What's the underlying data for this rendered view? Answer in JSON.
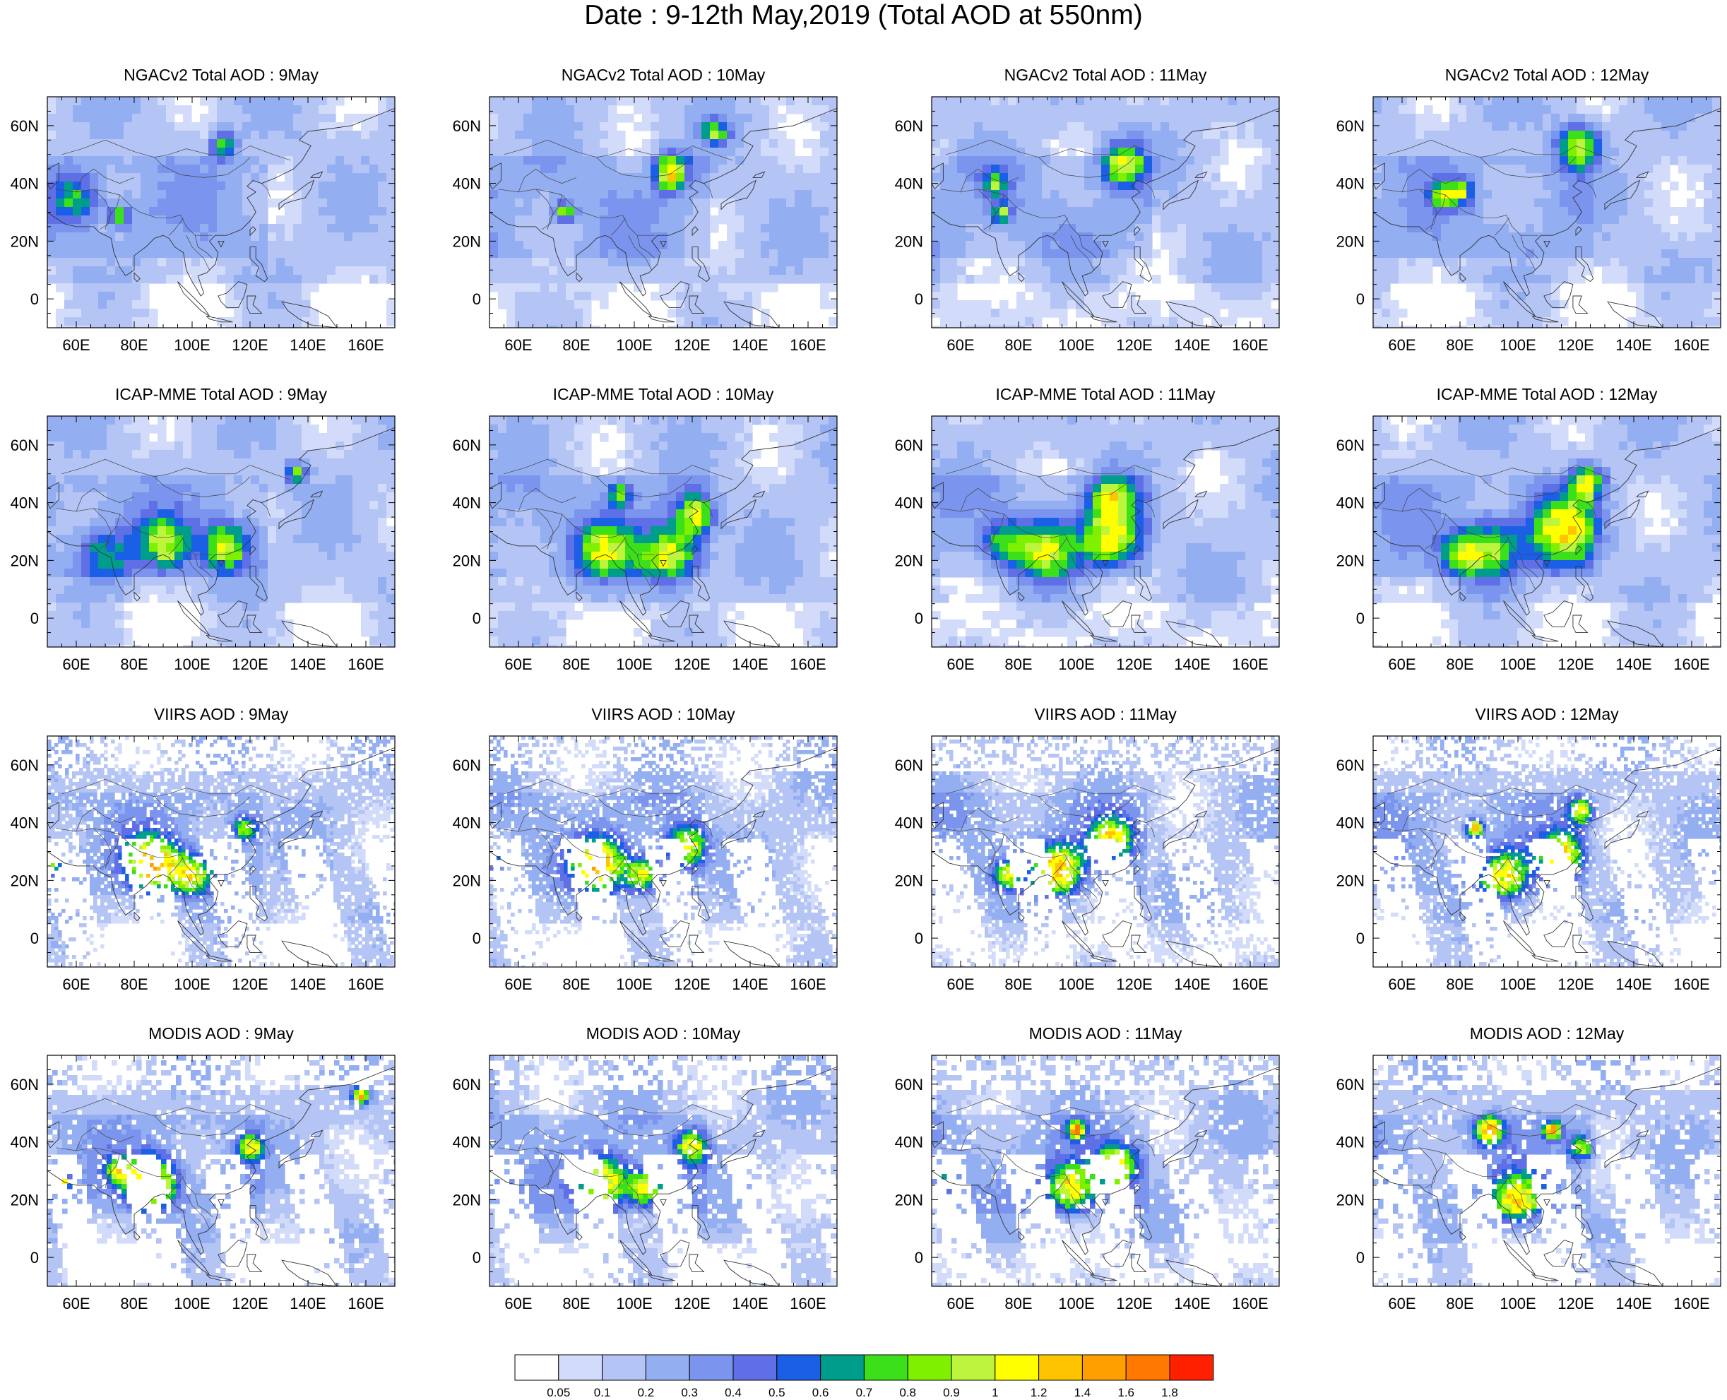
{
  "title": "Date : 9-12th May,2019 (Total AOD at 550nm)",
  "rows": [
    {
      "source": "NGACv2",
      "titles": [
        "NGACv2 Total AOD : 9May",
        "NGACv2 Total AOD : 10May",
        "NGACv2 Total AOD : 11May",
        "NGACv2 Total AOD : 12May"
      ]
    },
    {
      "source": "ICAP-MME",
      "titles": [
        "ICAP-MME Total AOD : 9May",
        "ICAP-MME Total AOD : 10May",
        "ICAP-MME Total AOD : 11May",
        "ICAP-MME Total AOD : 12May"
      ]
    },
    {
      "source": "VIIRS",
      "titles": [
        "VIIRS AOD : 9May",
        "VIIRS AOD : 10May",
        "VIIRS AOD : 11May",
        "VIIRS AOD : 12May"
      ]
    },
    {
      "source": "MODIS",
      "titles": [
        "MODIS AOD : 9May",
        "MODIS AOD : 10May",
        "MODIS AOD : 11May",
        "MODIS AOD : 12May"
      ]
    }
  ],
  "lon_ticks": [
    "60E",
    "80E",
    "100E",
    "120E",
    "140E",
    "160E"
  ],
  "lat_ticks": [
    "60N",
    "40N",
    "20N",
    "0"
  ],
  "map_extent": {
    "lon_min": 50,
    "lon_max": 170,
    "lat_min": -10,
    "lat_max": 70
  },
  "colorbar": {
    "labels": [
      "0.05",
      "0.1",
      "0.2",
      "0.3",
      "0.4",
      "0.5",
      "0.6",
      "0.7",
      "0.8",
      "0.9",
      "1",
      "1.2",
      "1.4",
      "1.6",
      "1.8"
    ],
    "colors": [
      "#ffffff",
      "#d2dcfa",
      "#b3c4f5",
      "#94aef2",
      "#7b94ee",
      "#5f6fe5",
      "#1a5fe6",
      "#009c8c",
      "#3be01a",
      "#7ef000",
      "#bdf43c",
      "#ffff00",
      "#ffc400",
      "#ffa000",
      "#ff7800",
      "#ff2000"
    ]
  }
}
